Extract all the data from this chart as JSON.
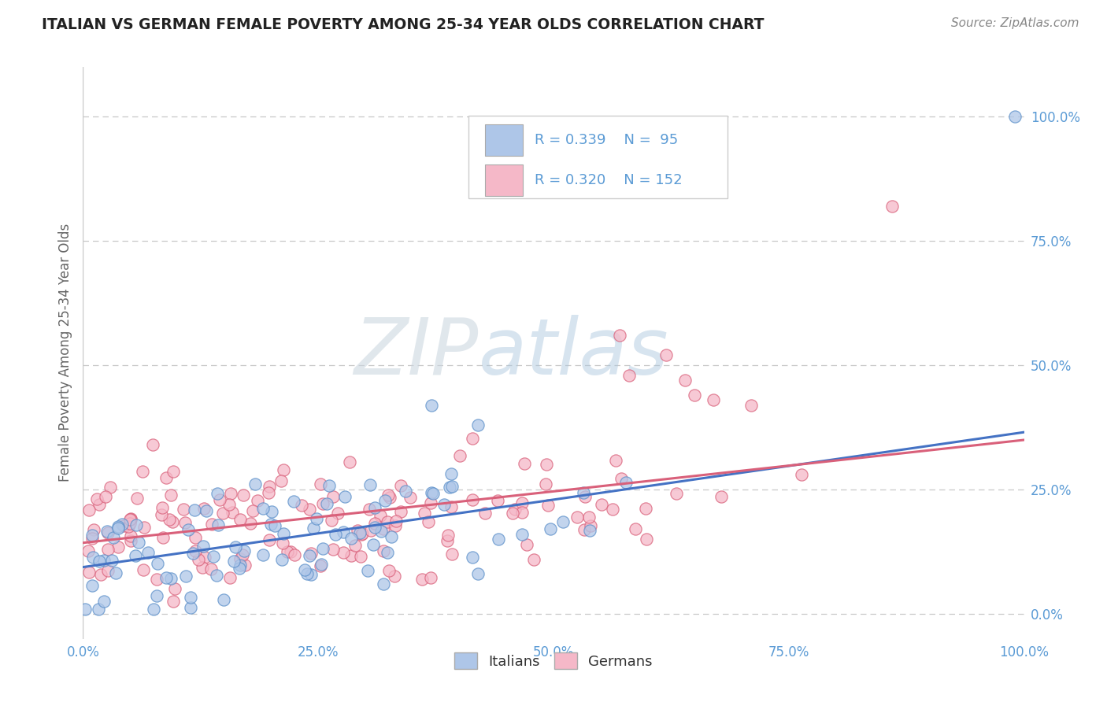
{
  "title": "ITALIAN VS GERMAN FEMALE POVERTY AMONG 25-34 YEAR OLDS CORRELATION CHART",
  "source": "Source: ZipAtlas.com",
  "ylabel": "Female Poverty Among 25-34 Year Olds",
  "xlim": [
    0.0,
    1.0
  ],
  "ylim": [
    -0.05,
    1.1
  ],
  "xticklabels": [
    "0.0%",
    "25.0%",
    "50.0%",
    "75.0%",
    "100.0%"
  ],
  "yticklabels_right": [
    "0.0%",
    "25.0%",
    "50.0%",
    "75.0%",
    "100.0%"
  ],
  "italian_R": "0.339",
  "italian_N": "95",
  "german_R": "0.320",
  "german_N": "152",
  "italian_fill": "#aec6e8",
  "italian_edge": "#5b8fc9",
  "german_fill": "#f5b8c8",
  "german_edge": "#d9607a",
  "italian_line": "#4472c4",
  "german_line": "#d9607a",
  "background_color": "#ffffff",
  "grid_color": "#c8c8c8",
  "title_color": "#222222",
  "tick_color": "#5b9bd5",
  "ylabel_color": "#666666",
  "watermark_color": "#dde8f0",
  "legend_text_color": "#5b9bd5",
  "source_color": "#888888"
}
